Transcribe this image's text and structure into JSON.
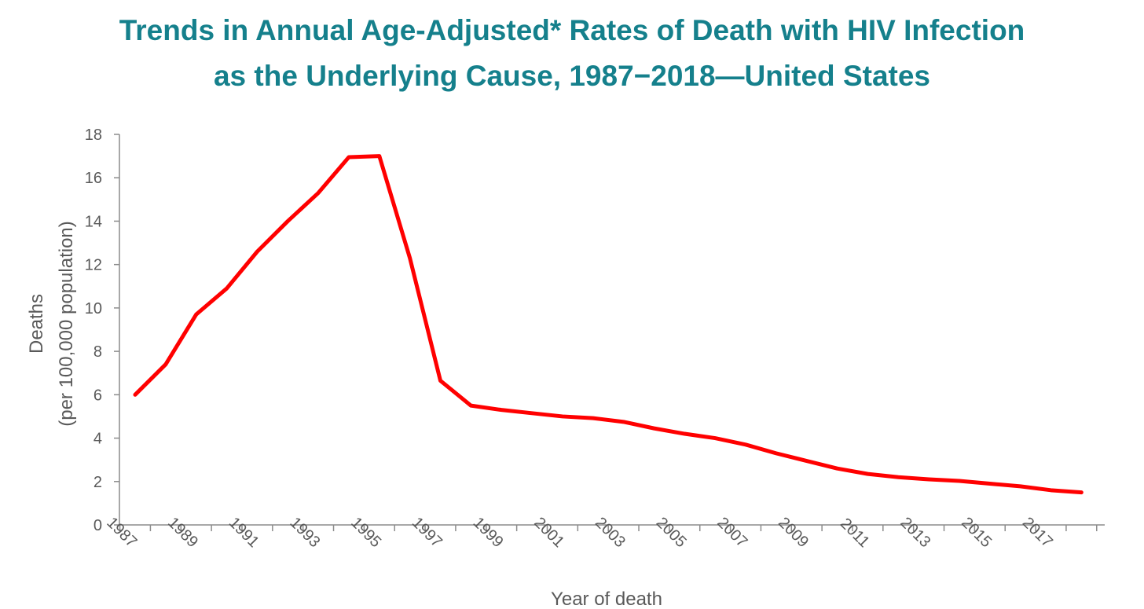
{
  "chart_data": {
    "type": "line",
    "title": [
      "Trends in Annual Age-Adjusted* Rates of Death with HIV Infection",
      "as the Underlying Cause, 1987−2018—United States"
    ],
    "xlabel": "Year of death",
    "ylabel": [
      "Deaths",
      "(per 100,000 population)"
    ],
    "x": [
      1987,
      1988,
      1989,
      1990,
      1991,
      1992,
      1993,
      1994,
      1995,
      1996,
      1997,
      1998,
      1999,
      2000,
      2001,
      2002,
      2003,
      2004,
      2005,
      2006,
      2007,
      2008,
      2009,
      2010,
      2011,
      2012,
      2013,
      2014,
      2015,
      2016,
      2017,
      2018
    ],
    "x_tick_labels": [
      "1987",
      "1989",
      "1991",
      "1993",
      "1995",
      "1997",
      "1999",
      "2001",
      "2003",
      "2005",
      "2007",
      "2009",
      "2011",
      "2013",
      "2015",
      "2017"
    ],
    "ylim": [
      0,
      18
    ],
    "y_ticks": [
      0,
      2,
      4,
      6,
      8,
      10,
      12,
      14,
      16,
      18
    ],
    "series": [
      {
        "color": "#ff0000",
        "values": [
          6.0,
          7.4,
          9.7,
          10.9,
          12.6,
          14.0,
          15.3,
          16.95,
          17.0,
          12.3,
          6.65,
          5.5,
          5.3,
          5.15,
          5.0,
          4.92,
          4.75,
          4.45,
          4.2,
          4.0,
          3.7,
          3.3,
          2.95,
          2.6,
          2.35,
          2.2,
          2.1,
          2.03,
          1.9,
          1.78,
          1.6,
          1.5
        ]
      }
    ],
    "grid": false,
    "legend": "none"
  }
}
